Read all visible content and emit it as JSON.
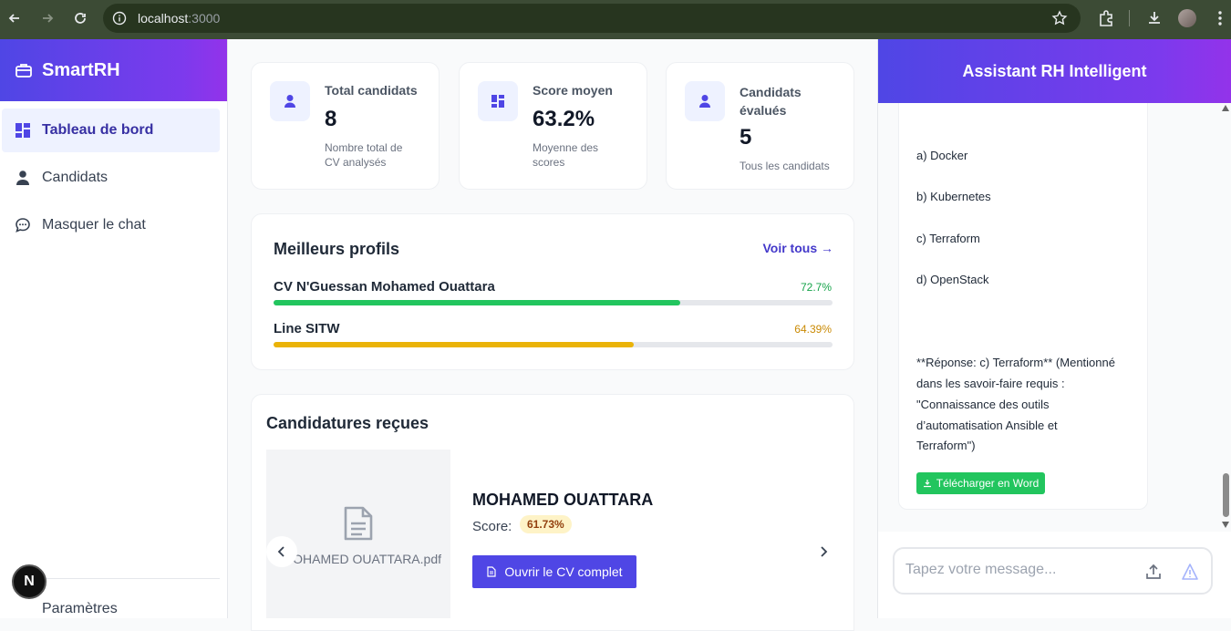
{
  "browser": {
    "url_host": "localhost",
    "url_port": ":3000"
  },
  "sidebar": {
    "brand": "SmartRH",
    "items": [
      {
        "label": "Tableau de bord",
        "icon": "dashboard-icon",
        "active": true
      },
      {
        "label": "Candidats",
        "icon": "person-icon",
        "active": false
      },
      {
        "label": "Masquer le chat",
        "icon": "chat-bubble-icon",
        "active": false
      }
    ],
    "settings_label": "Paramètres",
    "badge": "N"
  },
  "stats": [
    {
      "label": "Total candidats",
      "value": "8",
      "sub_lines": [
        "Nombre total de",
        "CV analysés"
      ]
    },
    {
      "label": "Score moyen",
      "value": "63.2%",
      "sub_lines": [
        "Moyenne des",
        "scores"
      ]
    },
    {
      "label_lines": [
        "Candidats",
        "évalués"
      ],
      "value": "5",
      "sub_lines": [
        "Tous les candidats"
      ]
    }
  ],
  "best_profiles": {
    "title": "Meilleurs profils",
    "link": "Voir tous →",
    "items": [
      {
        "name": "CV N'Guessan Mohamed Ouattara",
        "score_text": "72.7%",
        "score": 72.7,
        "color": "#22c55e",
        "text_color": "#16a34a"
      },
      {
        "name": "Line SITW",
        "score_text": "64.39%",
        "score": 64.39,
        "color": "#eab308",
        "text_color": "#ca8a04"
      }
    ]
  },
  "applications": {
    "title": "Candidatures reçues",
    "file_name": "MOHAMED OUATTARA.pdf",
    "file_name_visible": "OHAMED OUATTARA.pdf",
    "candidate_name": "MOHAMED OUATTARA",
    "score_label": "Score:",
    "score_value": "61.73%",
    "open_button": "Ouvrir le CV complet"
  },
  "chat": {
    "title": "Assistant RH Intelligent",
    "lines": [
      "a) Docker",
      "b) Kubernetes",
      "c) Terraform",
      "d) OpenStack",
      "**Réponse: c) Terraform** (Mentionné",
      "dans les savoir-faire requis :",
      "\"Connaissance des outils",
      "d’automatisation Ansible et",
      "Terraform\")"
    ],
    "download_button": "Télécharger en Word",
    "input_placeholder": "Tapez votre message..."
  }
}
